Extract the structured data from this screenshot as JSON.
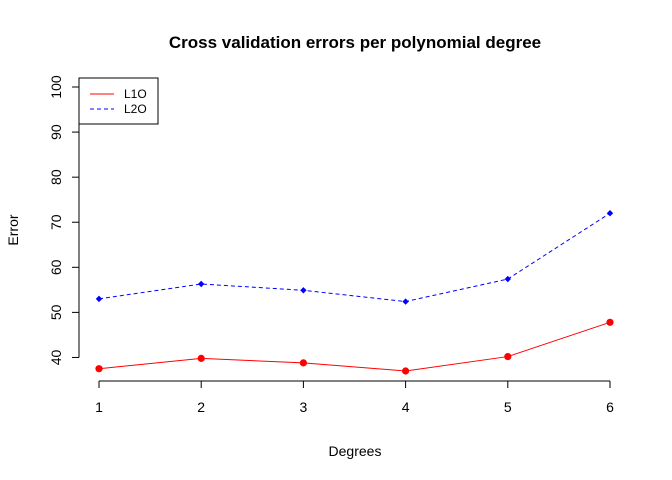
{
  "chart_data": {
    "type": "line",
    "title": "Cross validation errors per polynomial degree",
    "xlabel": "Degrees",
    "ylabel": "Error",
    "x": [
      1,
      2,
      3,
      4,
      5,
      6
    ],
    "xticks": [
      "1",
      "2",
      "3",
      "4",
      "5",
      "6"
    ],
    "yticks": [
      "40",
      "50",
      "60",
      "70",
      "80",
      "90",
      "100"
    ],
    "ylim": [
      35,
      102
    ],
    "xlim": [
      1,
      6
    ],
    "grid": false,
    "legend_position": "top-left",
    "series": [
      {
        "name": "L1O",
        "values": [
          37.5,
          39.8,
          38.8,
          37.0,
          40.2,
          47.8
        ],
        "color": "#ff0000",
        "dash": "solid",
        "marker": "circle"
      },
      {
        "name": "L2O",
        "values": [
          53.0,
          56.3,
          54.9,
          52.4,
          57.4,
          72.0
        ],
        "color": "#0000ff",
        "dash": "dashed",
        "marker": "diamond"
      }
    ]
  }
}
